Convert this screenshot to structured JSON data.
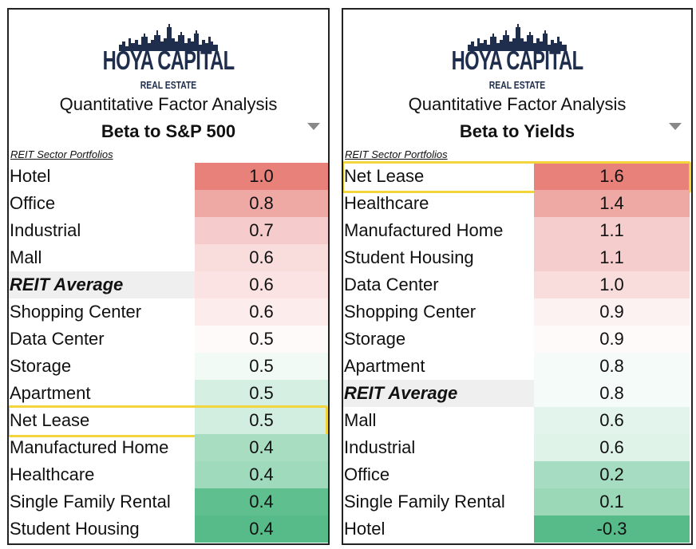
{
  "logo": {
    "brand": "HOYA CAPITAL",
    "sub": "REAL ESTATE"
  },
  "highlight_color": "#f2d43d",
  "chart_data": [
    {
      "type": "table",
      "title": "Quantitative Factor Analysis",
      "metric": "Beta to S&P 500",
      "section_label": "REIT Sector Portfolios",
      "rows": [
        {
          "name": "Hotel",
          "value": "1.0",
          "color": "#e8817a"
        },
        {
          "name": "Office",
          "value": "0.8",
          "color": "#efa9a4"
        },
        {
          "name": "Industrial",
          "value": "0.7",
          "color": "#f5cccb"
        },
        {
          "name": "Mall",
          "value": "0.6",
          "color": "#f9dcdc"
        },
        {
          "name": "REIT Average",
          "value": "0.6",
          "color": "#fbe3e3",
          "average": true
        },
        {
          "name": "Shopping Center",
          "value": "0.6",
          "color": "#fcecec"
        },
        {
          "name": "Data Center",
          "value": "0.5",
          "color": "#fefafa"
        },
        {
          "name": "Storage",
          "value": "0.5",
          "color": "#f2faf6"
        },
        {
          "name": "Apartment",
          "value": "0.5",
          "color": "#d5efe2"
        },
        {
          "name": "Net Lease",
          "value": "0.5",
          "color": "#d2eee0",
          "highlight": true
        },
        {
          "name": "Manufactured Home",
          "value": "0.4",
          "color": "#a8ddc2"
        },
        {
          "name": "Healthcare",
          "value": "0.4",
          "color": "#9fdabc"
        },
        {
          "name": "Single Family Rental",
          "value": "0.4",
          "color": "#5fbf8e"
        },
        {
          "name": "Student Housing",
          "value": "0.4",
          "color": "#57bb89"
        }
      ]
    },
    {
      "type": "table",
      "title": "Quantitative Factor Analysis",
      "metric": "Beta to Yields",
      "section_label": "REIT Sector Portfolios",
      "rows": [
        {
          "name": "Net Lease",
          "value": "1.6",
          "color": "#e8817a",
          "highlight": true
        },
        {
          "name": "Healthcare",
          "value": "1.4",
          "color": "#efa9a4"
        },
        {
          "name": "Manufactured Home",
          "value": "1.1",
          "color": "#f5cdcc"
        },
        {
          "name": "Student Housing",
          "value": "1.1",
          "color": "#f5cdcc"
        },
        {
          "name": "Data Center",
          "value": "1.0",
          "color": "#f9dddd"
        },
        {
          "name": "Shopping Center",
          "value": "0.9",
          "color": "#fdf2f2"
        },
        {
          "name": "Storage",
          "value": "0.9",
          "color": "#fefafa"
        },
        {
          "name": "Apartment",
          "value": "0.8",
          "color": "#f5fbf8"
        },
        {
          "name": "REIT Average",
          "value": "0.8",
          "color": "#f5fbf8",
          "average": true
        },
        {
          "name": "Mall",
          "value": "0.6",
          "color": "#e2f4eb"
        },
        {
          "name": "Industrial",
          "value": "0.6",
          "color": "#e0f3e9"
        },
        {
          "name": "Office",
          "value": "0.2",
          "color": "#a6dcc1"
        },
        {
          "name": "Single Family Rental",
          "value": "0.1",
          "color": "#9ad8b8"
        },
        {
          "name": "Hotel",
          "value": "-0.3",
          "color": "#57bb89"
        }
      ]
    }
  ]
}
